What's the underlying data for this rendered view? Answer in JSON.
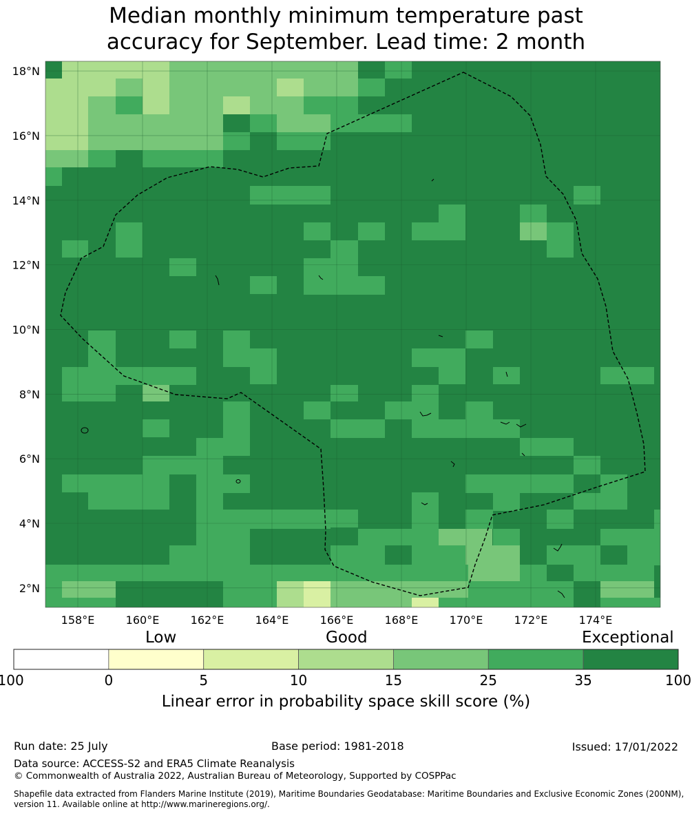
{
  "title": {
    "line1": "Median monthly minimum temperature past",
    "line2": "accuracy for September. Lead time: 2 month"
  },
  "map": {
    "lat_labels": [
      "18°N",
      "16°N",
      "14°N",
      "12°N",
      "10°N",
      "8°N",
      "6°N",
      "4°N",
      "2°N"
    ],
    "lon_labels": [
      "158°E",
      "160°E",
      "162°E",
      "164°E",
      "166°E",
      "168°E",
      "170°E",
      "172°E",
      "174°E"
    ],
    "lat_range": [
      1.4,
      18.3
    ],
    "lon_range": [
      157.0,
      176.0
    ],
    "colors": {
      "c0": "#ffffcc",
      "c1": "#d9f0a3",
      "c2": "#addd8e",
      "c3": "#78c679",
      "c4": "#41ab5d",
      "c5": "#238443",
      "boundary": "#000000"
    },
    "legend_categories": [
      "-100 to 0",
      "0 to 5",
      "5 to 10",
      "10 to 15",
      "15 to 25",
      "25 to 35",
      "35 to 100"
    ]
  },
  "colorbar": {
    "words": {
      "low": "Low",
      "good": "Good",
      "exceptional": "Exceptional"
    },
    "ticks": [
      "-100",
      "0",
      "5",
      "10",
      "15",
      "25",
      "35",
      "100"
    ],
    "axis_label": "Linear error in probability space skill score (%)",
    "colors": [
      "#ffffff",
      "#ffffcc",
      "#d9f0a3",
      "#addd8e",
      "#78c679",
      "#41ab5d",
      "#238443"
    ]
  },
  "footer": {
    "run_date": "Run date: 25 July",
    "base_period": "Base period: 1981-2018",
    "issued": "Issued: 17/01/2022",
    "data_source": "Data source: ACCESS-S2 and ERA5 Climate Reanalysis",
    "copyright": "© Commonwealth of Australia 2022, Australian Bureau of Meteorology, Supported by COSPPac",
    "shapefile_line1": "Shapefile data extracted from Flanders Marine Institute (2019), Maritime Boundaries Geodatabase: Maritime Boundaries and Exclusive Economic Zones (200NM),",
    "shapefile_line2": "version 11. Available online at http://www.marineregions.org/."
  }
}
